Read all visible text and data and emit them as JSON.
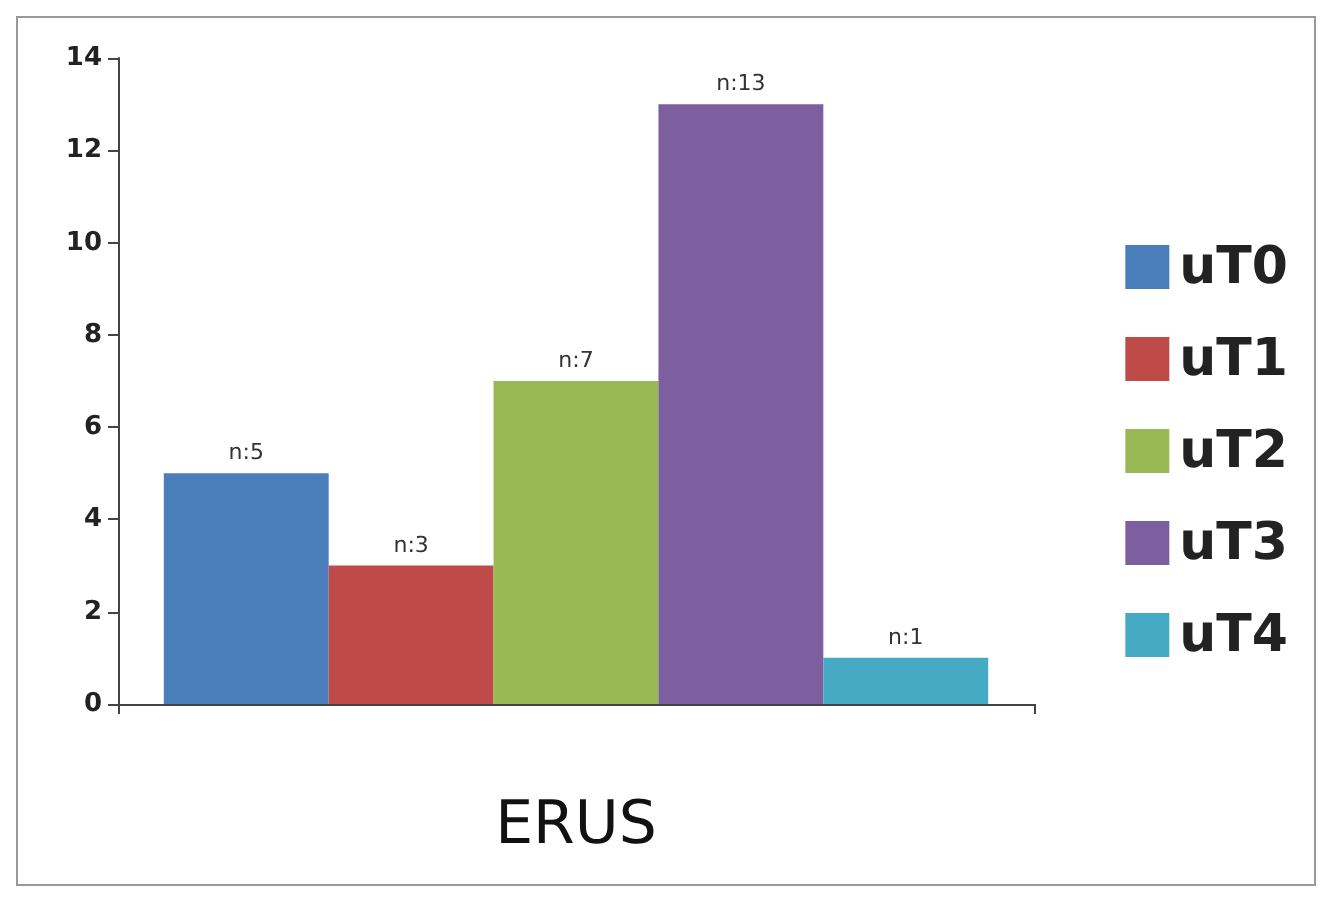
{
  "chart_data": {
    "type": "bar",
    "xlabel": "ERUS",
    "categories": [
      null
    ],
    "series": [
      {
        "name": "uT0",
        "color": "#4a7ebb",
        "values": [
          5
        ],
        "value_labels": [
          "n:5"
        ]
      },
      {
        "name": "uT1",
        "color": "#be4b48",
        "values": [
          3
        ],
        "value_labels": [
          "n:3"
        ]
      },
      {
        "name": "uT2",
        "color": "#98b954",
        "values": [
          7
        ],
        "value_labels": [
          "n:7"
        ]
      },
      {
        "name": "uT3",
        "color": "#7d5fa0",
        "values": [
          13
        ],
        "value_labels": [
          "n:13"
        ]
      },
      {
        "name": "uT4",
        "color": "#46aac5",
        "values": [
          1
        ],
        "value_labels": [
          "n:1"
        ]
      }
    ],
    "ylim": [
      0,
      14
    ],
    "yticks": [
      0,
      2,
      4,
      6,
      8,
      10,
      12,
      14
    ],
    "grid": false,
    "legend": "right"
  }
}
